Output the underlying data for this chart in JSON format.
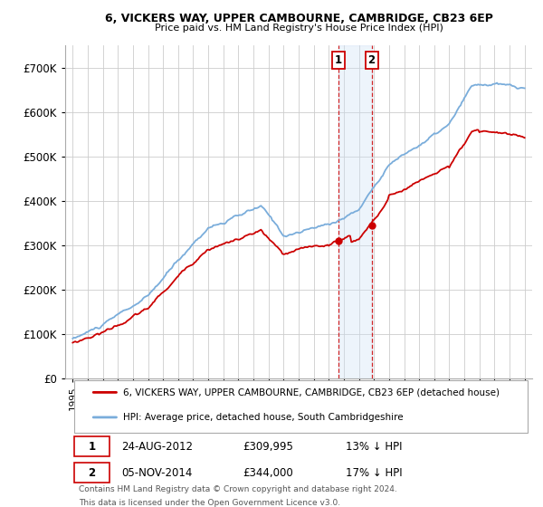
{
  "title_line1": "6, VICKERS WAY, UPPER CAMBOURNE, CAMBRIDGE, CB23 6EP",
  "title_line2": "Price paid vs. HM Land Registry's House Price Index (HPI)",
  "legend_label_red": "6, VICKERS WAY, UPPER CAMBOURNE, CAMBRIDGE, CB23 6EP (detached house)",
  "legend_label_blue": "HPI: Average price, detached house, South Cambridgeshire",
  "annotation1": {
    "label": "1",
    "date": "24-AUG-2012",
    "price": "£309,995",
    "pct": "13% ↓ HPI"
  },
  "annotation2": {
    "label": "2",
    "date": "05-NOV-2014",
    "price": "£344,000",
    "pct": "17% ↓ HPI"
  },
  "footer": "Contains HM Land Registry data © Crown copyright and database right 2024.\nThis data is licensed under the Open Government Licence v3.0.",
  "ylim": [
    0,
    750000
  ],
  "yticks": [
    0,
    100000,
    200000,
    300000,
    400000,
    500000,
    600000,
    700000
  ],
  "ytick_labels": [
    "£0",
    "£100K",
    "£200K",
    "£300K",
    "£400K",
    "£500K",
    "£600K",
    "£700K"
  ],
  "background_color": "#ffffff",
  "grid_color": "#cccccc",
  "red_color": "#cc0000",
  "blue_color": "#7aaddb",
  "sale1_x": 2012.65,
  "sale2_x": 2014.84,
  "sale1_y": 309995,
  "sale2_y": 344000,
  "highlight_color": "#cce0f5",
  "vline_color": "#cc0000",
  "xlim_left": 1994.5,
  "xlim_right": 2025.5
}
